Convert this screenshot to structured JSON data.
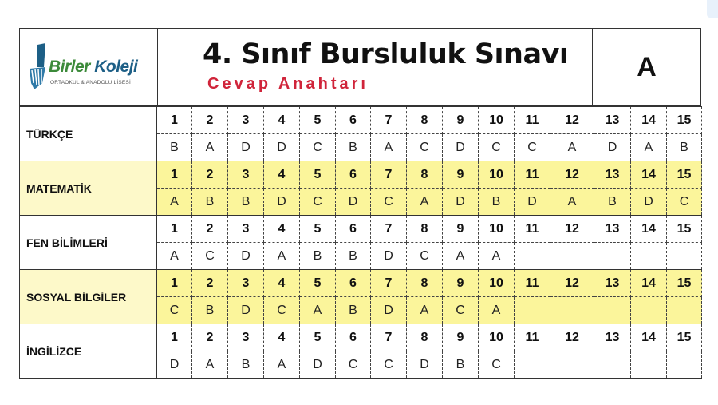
{
  "header": {
    "logo_name_part1": "Birler",
    "logo_name_part2": "Koleji",
    "logo_subtitle": "ORTAOKUL & ANADOLU LİSESİ",
    "title": "4. Sınıf Bursluluk Sınavı",
    "subtitle": "Cevap Anahtarı",
    "booklet": "A"
  },
  "colors": {
    "highlight": "#fbf59b",
    "subtitle": "#d0243a",
    "logo_green": "#3c8a3a",
    "logo_blue": "#1d5f86"
  },
  "subjects": [
    {
      "name": "TÜRKÇE",
      "highlight": false,
      "numbers": [
        "1",
        "2",
        "3",
        "4",
        "5",
        "6",
        "7",
        "8",
        "9",
        "10",
        "11",
        "12",
        "13",
        "14",
        "15"
      ],
      "answers": [
        "B",
        "A",
        "D",
        "D",
        "C",
        "B",
        "A",
        "C",
        "D",
        "C",
        "C",
        "A",
        "D",
        "A",
        "B"
      ]
    },
    {
      "name": "MATEMATİK",
      "highlight": true,
      "numbers": [
        "1",
        "2",
        "3",
        "4",
        "5",
        "6",
        "7",
        "8",
        "9",
        "10",
        "11",
        "12",
        "13",
        "14",
        "15"
      ],
      "answers": [
        "A",
        "B",
        "B",
        "D",
        "C",
        "D",
        "C",
        "A",
        "D",
        "B",
        "D",
        "A",
        "B",
        "D",
        "C"
      ]
    },
    {
      "name": "FEN BİLİMLERİ",
      "highlight": false,
      "numbers": [
        "1",
        "2",
        "3",
        "4",
        "5",
        "6",
        "7",
        "8",
        "9",
        "10",
        "11",
        "12",
        "13",
        "14",
        "15"
      ],
      "answers": [
        "A",
        "C",
        "D",
        "A",
        "B",
        "B",
        "D",
        "C",
        "A",
        "A",
        "",
        "",
        "",
        "",
        ""
      ]
    },
    {
      "name": "SOSYAL BİLGİLER",
      "highlight": true,
      "numbers": [
        "1",
        "2",
        "3",
        "4",
        "5",
        "6",
        "7",
        "8",
        "9",
        "10",
        "11",
        "12",
        "13",
        "14",
        "15"
      ],
      "answers": [
        "C",
        "B",
        "D",
        "C",
        "A",
        "B",
        "D",
        "A",
        "C",
        "A",
        "",
        "",
        "",
        "",
        ""
      ]
    },
    {
      "name": "İNGİLİZCE",
      "highlight": false,
      "numbers": [
        "1",
        "2",
        "3",
        "4",
        "5",
        "6",
        "7",
        "8",
        "9",
        "10",
        "11",
        "12",
        "13",
        "14",
        "15"
      ],
      "answers": [
        "D",
        "A",
        "B",
        "A",
        "D",
        "C",
        "C",
        "D",
        "B",
        "C",
        "",
        "",
        "",
        "",
        ""
      ]
    }
  ]
}
